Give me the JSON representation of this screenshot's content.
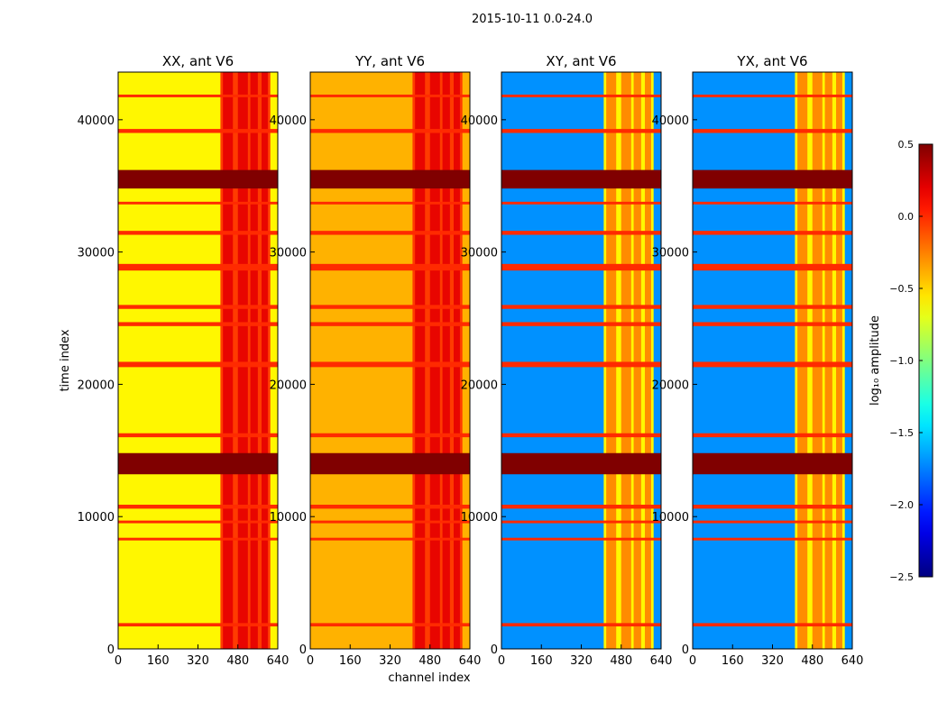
{
  "figure": {
    "suptitle": "2015-10-11 0.0-24.0"
  },
  "chart_data": {
    "type": "heatmap",
    "xlabel": "channel index",
    "ylabel": "time index",
    "xlim": [
      0,
      640
    ],
    "ylim": [
      0,
      43600
    ],
    "xticks": [
      0,
      160,
      320,
      480,
      640
    ],
    "yticks": [
      0,
      10000,
      20000,
      30000,
      40000
    ],
    "colormap": "jet",
    "panels": [
      {
        "title": "XX, ant V6",
        "base_level": -0.6,
        "show_ylabel": true
      },
      {
        "title": "YY, ant V6",
        "base_level": -0.4,
        "show_ylabel": false
      },
      {
        "title": "XY, ant V6",
        "base_level": -1.7,
        "show_ylabel": false
      },
      {
        "title": "YX, ant V6",
        "base_level": -1.7,
        "show_ylabel": false
      }
    ],
    "rfi_channel_range": [
      410,
      610
    ],
    "rfi_channel_strips": [
      [
        420,
        460
      ],
      [
        480,
        520
      ],
      [
        530,
        560
      ],
      [
        575,
        600
      ]
    ],
    "bright_time_bands": [
      [
        13200,
        14800
      ],
      [
        34800,
        36200
      ],
      [
        28600,
        29100
      ],
      [
        25700,
        26000
      ],
      [
        24400,
        24700
      ],
      [
        21300,
        21700
      ],
      [
        16000,
        16300
      ],
      [
        10600,
        10900
      ],
      [
        9500,
        9700
      ],
      [
        8200,
        8400
      ],
      [
        1700,
        1950
      ],
      [
        31300,
        31600
      ],
      [
        33600,
        33800
      ],
      [
        39000,
        39300
      ],
      [
        41700,
        41900
      ]
    ],
    "colorbar": {
      "label": "log₁₀ amplitude",
      "min": -2.5,
      "max": 0.5,
      "ticks": [
        "0.5",
        "0.0",
        "−0.5",
        "−1.0",
        "−1.5",
        "−2.0",
        "−2.5"
      ]
    }
  }
}
